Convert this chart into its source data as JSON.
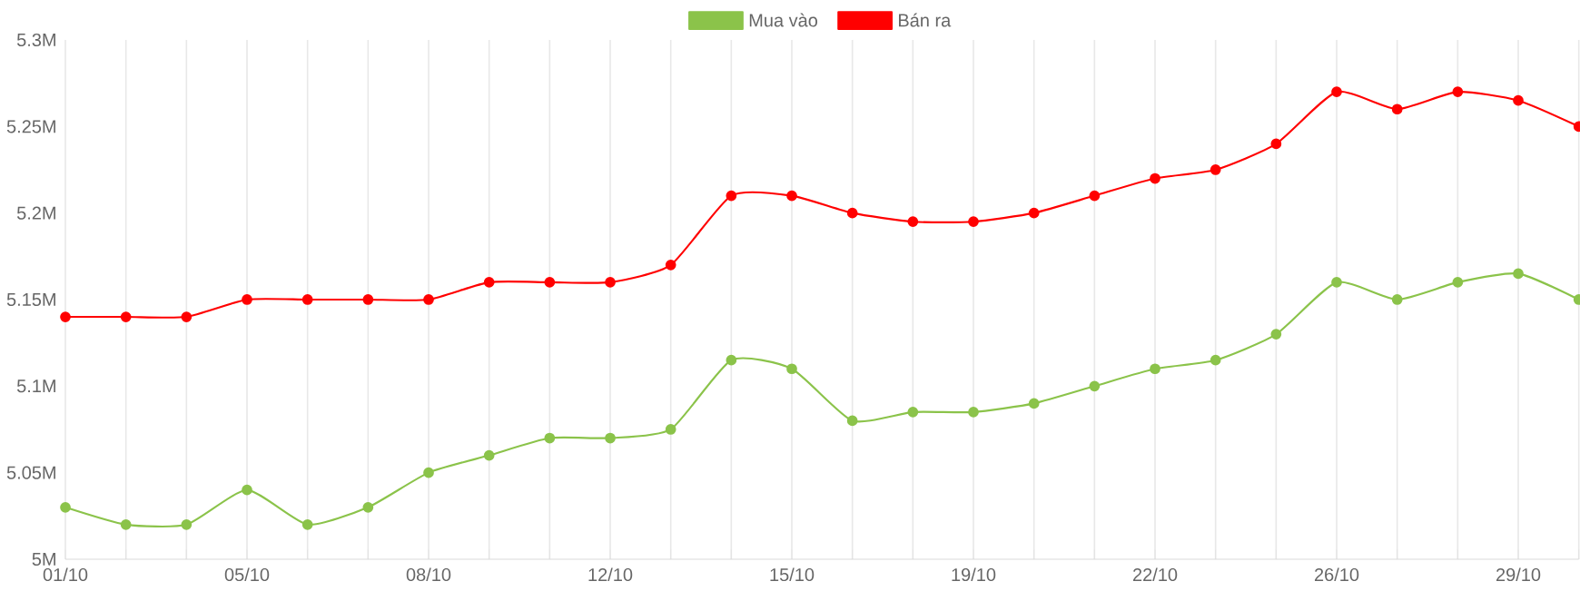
{
  "chart_data": {
    "type": "line",
    "categories": [
      "01/10",
      null,
      null,
      "05/10",
      null,
      null,
      "08/10",
      null,
      null,
      "12/10",
      null,
      null,
      "15/10",
      null,
      null,
      "19/10",
      null,
      null,
      "22/10",
      null,
      null,
      "26/10",
      null,
      null,
      "29/10",
      null
    ],
    "series": [
      {
        "name": "Mua vào",
        "color": "#8bc34a",
        "values": [
          5030000,
          5020000,
          5020000,
          5040000,
          5020000,
          5030000,
          5050000,
          5060000,
          5070000,
          5070000,
          5075000,
          5115000,
          5110000,
          5080000,
          5085000,
          5085000,
          5090000,
          5100000,
          5110000,
          5115000,
          5130000,
          5160000,
          5150000,
          5160000,
          5165000,
          5150000
        ]
      },
      {
        "name": "Bán ra",
        "color": "#ff0000",
        "values": [
          5140000,
          5140000,
          5140000,
          5150000,
          5150000,
          5150000,
          5150000,
          5160000,
          5160000,
          5160000,
          5170000,
          5210000,
          5210000,
          5200000,
          5195000,
          5195000,
          5200000,
          5210000,
          5220000,
          5225000,
          5240000,
          5270000,
          5260000,
          5270000,
          5265000,
          5250000
        ]
      }
    ],
    "ylim": [
      5000000,
      5300000
    ],
    "yticks": [
      {
        "value": 5000000,
        "label": "5M"
      },
      {
        "value": 5050000,
        "label": "5.05M"
      },
      {
        "value": 5100000,
        "label": "5.1M"
      },
      {
        "value": 5150000,
        "label": "5.15M"
      },
      {
        "value": 5200000,
        "label": "5.2M"
      },
      {
        "value": 5250000,
        "label": "5.25M"
      },
      {
        "value": 5300000,
        "label": "5.3M"
      }
    ],
    "grid": "x",
    "legend": "top",
    "marker": "circle",
    "line_style": "solid"
  }
}
